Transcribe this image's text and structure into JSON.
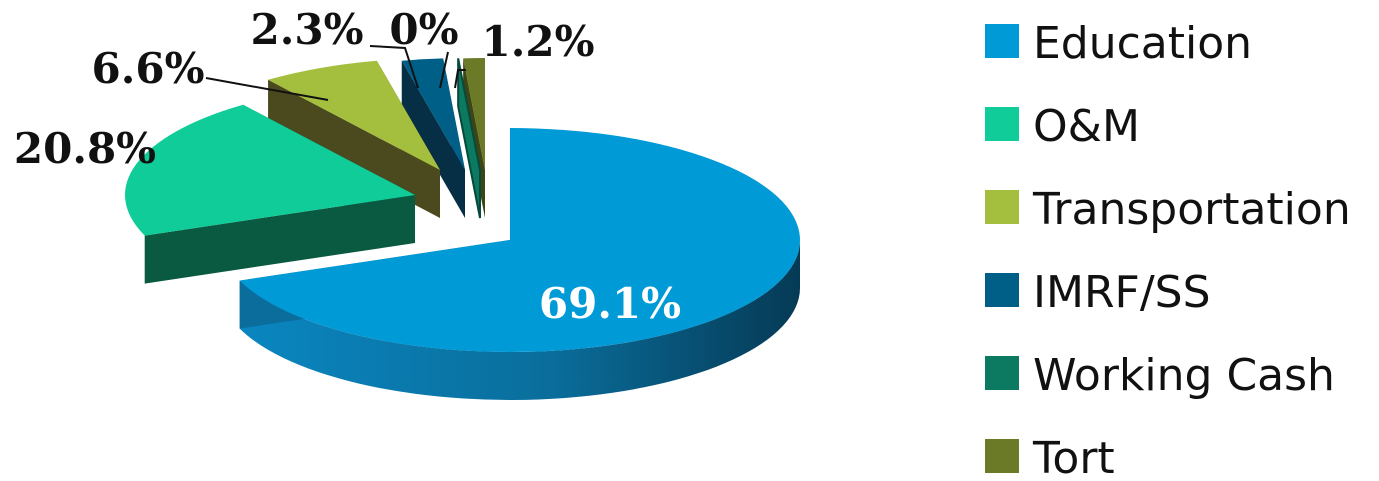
{
  "chart_data": {
    "type": "pie",
    "title": "",
    "categories": [
      "Education",
      "O&M",
      "Transportation",
      "IMRF/SS",
      "Working Cash",
      "Tort"
    ],
    "values": [
      69.1,
      20.8,
      6.6,
      2.3,
      0,
      1.2
    ],
    "data_labels": [
      "69.1%",
      "20.8%",
      "6.6%",
      "2.3%",
      "0%",
      "1.2%"
    ],
    "legend_position": "right",
    "three_d": true,
    "exploded": true,
    "colors": [
      "#009ad6",
      "#10cc98",
      "#a4bf3e",
      "#005f87",
      "#0b7a60",
      "#6b7a27"
    ]
  }
}
